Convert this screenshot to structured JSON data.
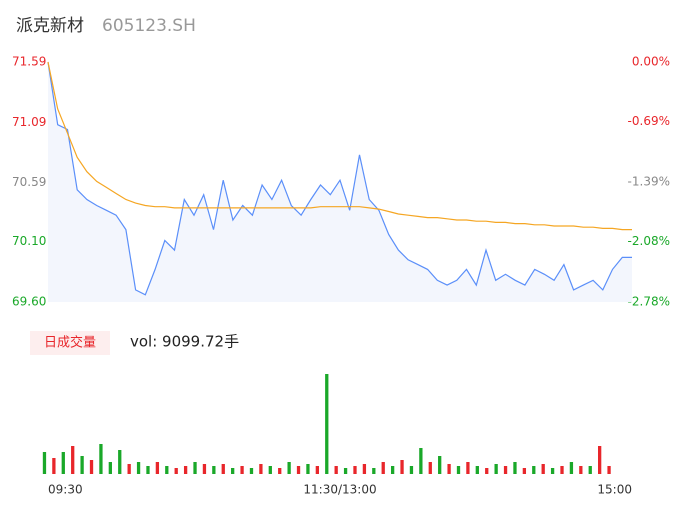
{
  "header": {
    "name": "派克新材",
    "code": "605123.SH"
  },
  "chart_data": [
    {
      "type": "line",
      "categories": [
        "09:30",
        null,
        null,
        null,
        null,
        null,
        null,
        null,
        null,
        null,
        null,
        null,
        null,
        null,
        null,
        null,
        null,
        null,
        null,
        null,
        null,
        null,
        null,
        null,
        null,
        null,
        null,
        null,
        null,
        null,
        "11:30/13:00",
        null,
        null,
        null,
        null,
        null,
        null,
        null,
        null,
        null,
        null,
        null,
        null,
        null,
        null,
        null,
        null,
        null,
        null,
        null,
        null,
        null,
        null,
        null,
        null,
        null,
        null,
        null,
        null,
        null,
        "15:00"
      ],
      "series": [
        {
          "color": "#5b8ff9",
          "area_color": "#f3f6fd",
          "values": [
            71.59,
            71.07,
            71.03,
            70.53,
            70.45,
            70.4,
            70.36,
            70.32,
            70.2,
            69.7,
            69.66,
            69.87,
            70.11,
            70.03,
            70.45,
            70.32,
            70.49,
            70.2,
            70.61,
            70.28,
            70.4,
            70.32,
            70.57,
            70.45,
            70.61,
            70.4,
            70.32,
            70.45,
            70.57,
            70.49,
            70.61,
            70.36,
            70.82,
            70.45,
            70.36,
            70.16,
            70.03,
            69.95,
            69.91,
            69.87,
            69.78,
            69.74,
            69.78,
            69.87,
            69.74,
            70.03,
            69.78,
            69.83,
            69.78,
            69.74,
            69.87,
            69.83,
            69.78,
            69.91,
            69.7,
            69.74,
            69.78,
            69.7,
            69.87,
            69.97,
            69.97
          ]
        },
        {
          "color": "#f5a623",
          "values": [
            71.59,
            71.2,
            71.0,
            70.8,
            70.68,
            70.6,
            70.55,
            70.5,
            70.45,
            70.42,
            70.4,
            70.39,
            70.39,
            70.38,
            70.38,
            70.38,
            70.38,
            70.38,
            70.38,
            70.38,
            70.38,
            70.38,
            70.38,
            70.38,
            70.38,
            70.38,
            70.38,
            70.38,
            70.39,
            70.39,
            70.39,
            70.39,
            70.39,
            70.38,
            70.37,
            70.35,
            70.33,
            70.32,
            70.31,
            70.3,
            70.3,
            70.29,
            70.28,
            70.28,
            70.27,
            70.27,
            70.26,
            70.26,
            70.25,
            70.25,
            70.24,
            70.24,
            70.23,
            70.23,
            70.23,
            70.22,
            70.22,
            70.21,
            70.21,
            70.2,
            70.2
          ]
        }
      ],
      "ylim": [
        69.6,
        71.59
      ],
      "yticks": [
        {
          "value": 69.6,
          "label": "69.60"
        },
        {
          "value": 70.1,
          "label": "70.10"
        },
        70.59,
        71.09,
        71.59
      ],
      "ytick_colors": [
        "#1aa829",
        "#1aa829",
        "#888888",
        "#e8262b",
        "#e8262b"
      ],
      "y2lim": [
        -2.78,
        0.0
      ],
      "y2ticks": [
        {
          "value": -2.78,
          "label": "-2.78%"
        },
        {
          "value": -2.08,
          "label": "-2.08%"
        },
        {
          "value": -1.39,
          "label": "-1.39%"
        },
        {
          "value": -0.69,
          "label": "-0.69%"
        },
        {
          "value": 0.0,
          "label": "0.00%"
        }
      ]
    },
    {
      "type": "bar",
      "label": "日成交量",
      "summary": "vol: 9099.72手",
      "values": [
        110,
        80,
        110,
        140,
        90,
        70,
        150,
        60,
        120,
        50,
        60,
        40,
        60,
        40,
        30,
        40,
        60,
        50,
        40,
        50,
        30,
        40,
        30,
        50,
        40,
        30,
        60,
        40,
        50,
        40,
        500,
        40,
        30,
        40,
        50,
        30,
        60,
        40,
        70,
        40,
        130,
        60,
        90,
        50,
        40,
        60,
        40,
        30,
        50,
        40,
        60,
        30,
        40,
        50,
        30,
        40,
        60,
        40,
        40,
        140,
        40
      ],
      "colors": [
        "#1aa829",
        "#e8262b",
        "#1aa829",
        "#e8262b",
        "#1aa829",
        "#e8262b",
        "#1aa829",
        "#1aa829",
        "#1aa829",
        "#e8262b",
        "#1aa829",
        "#1aa829",
        "#e8262b",
        "#1aa829",
        "#e8262b",
        "#e8262b",
        "#1aa829",
        "#e8262b",
        "#1aa829",
        "#e8262b",
        "#1aa829",
        "#e8262b",
        "#1aa829",
        "#e8262b",
        "#1aa829",
        "#e8262b",
        "#1aa829",
        "#e8262b",
        "#1aa829",
        "#e8262b",
        "#1aa829",
        "#e8262b",
        "#1aa829",
        "#e8262b",
        "#e8262b",
        "#1aa829",
        "#e8262b",
        "#1aa829",
        "#e8262b",
        "#1aa829",
        "#1aa829",
        "#e8262b",
        "#1aa829",
        "#e8262b",
        "#1aa829",
        "#e8262b",
        "#1aa829",
        "#e8262b",
        "#1aa829",
        "#e8262b",
        "#1aa829",
        "#e8262b",
        "#1aa829",
        "#e8262b",
        "#1aa829",
        "#e8262b",
        "#1aa829",
        "#e8262b",
        "#1aa829",
        "#e8262b",
        "#e8262b"
      ]
    }
  ]
}
